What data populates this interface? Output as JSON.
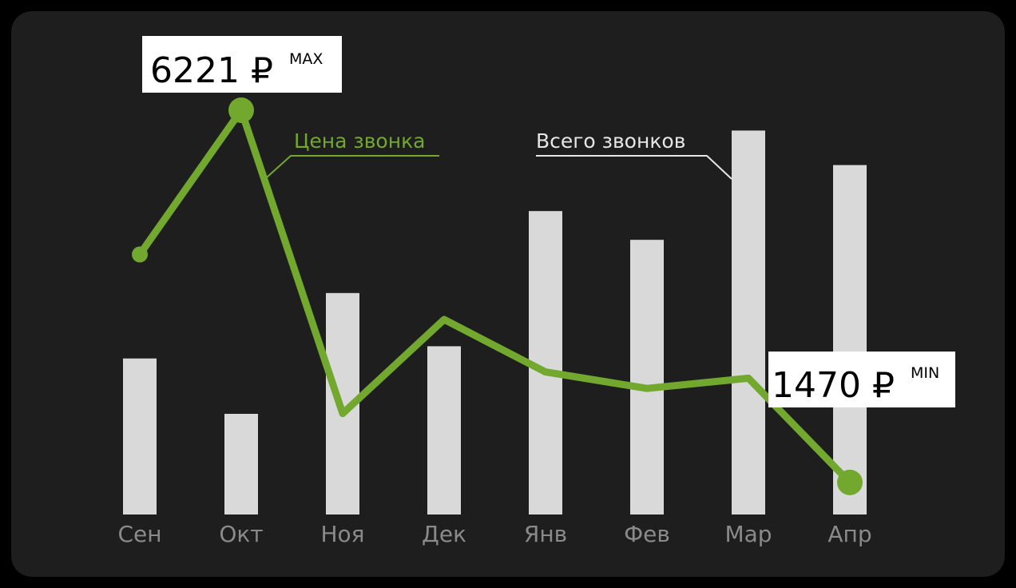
{
  "chart_data": {
    "type": "bar+line",
    "categories": [
      "Сен",
      "Окт",
      "Ноя",
      "Дек",
      "Янв",
      "Фев",
      "Мар",
      "Апр"
    ],
    "series": [
      {
        "name": "Всего звонков",
        "type": "bar",
        "values": [
          217,
          140,
          308,
          234,
          422,
          382,
          534,
          486
        ]
      },
      {
        "name": "Цена звонка",
        "type": "line",
        "values": [
          4380,
          6221,
          2350,
          3550,
          2880,
          2670,
          2800,
          1470
        ]
      }
    ],
    "annotations": {
      "max": {
        "value": "6221 ₽",
        "tag": "MAX"
      },
      "min": {
        "value": "1470 ₽",
        "tag": "MIN"
      }
    },
    "colors": {
      "bars": "#d9d9d9",
      "line": "#72a82e",
      "background": "#1e1e1e",
      "tick_labels": "#8a8a8a"
    }
  }
}
